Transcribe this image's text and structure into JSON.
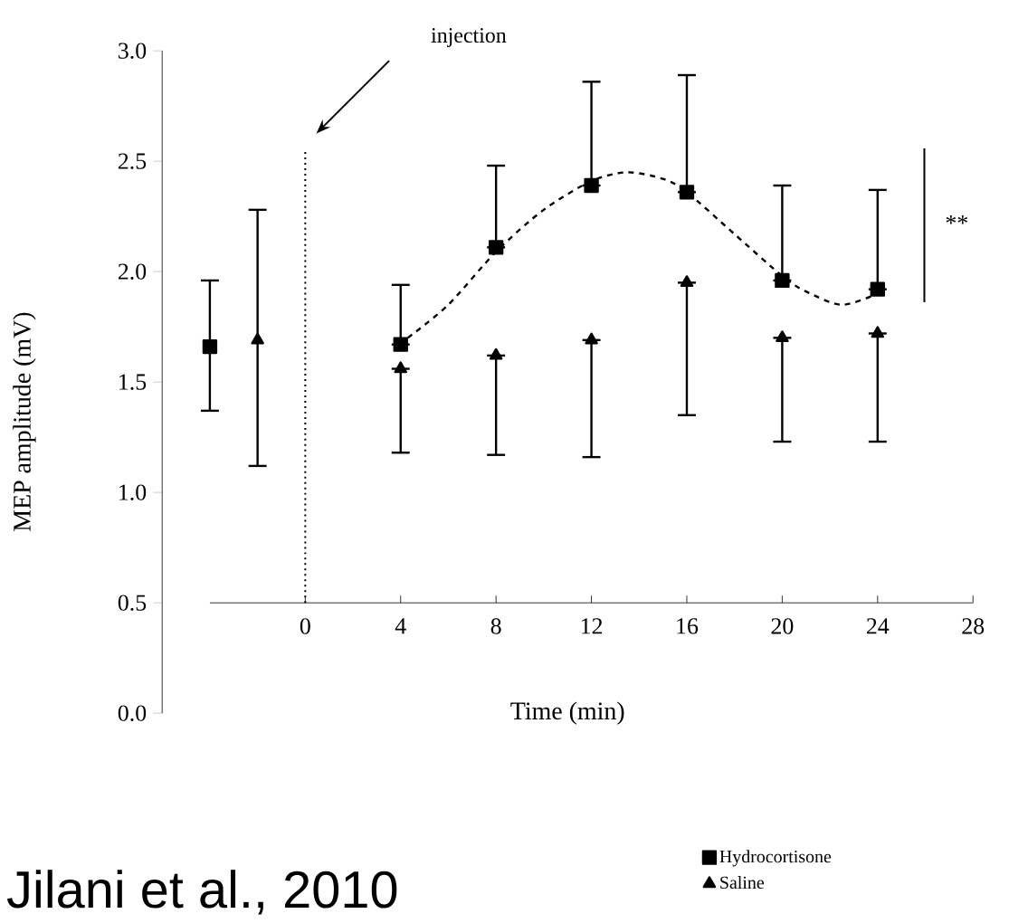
{
  "chart_data": {
    "type": "scatter",
    "xlabel": "Time (min)",
    "ylabel": "MEP amplitude (mV)",
    "xlim": [
      -6,
      28
    ],
    "ylim": [
      0,
      3
    ],
    "xticks": [
      0,
      4,
      8,
      12,
      16,
      20,
      24,
      28
    ],
    "yticks": [
      {
        "value": 0,
        "label": "0.0"
      },
      0.5,
      {
        "value": 1,
        "label": "1.0"
      },
      1.5,
      {
        "value": 2,
        "label": "2.0"
      },
      2.5,
      {
        "value": 3,
        "label": "3.0"
      }
    ],
    "legend": "bottom right",
    "series": [
      {
        "name": "Hydrocortisone",
        "marker": "square",
        "color": "#000000",
        "x": [
          -4,
          4,
          8,
          12,
          16,
          20,
          24
        ],
        "values": [
          1.66,
          1.67,
          2.11,
          2.39,
          2.36,
          1.96,
          1.92
        ],
        "errors": [
          [
            1.37,
            1.96
          ],
          [
            1.67,
            1.94
          ],
          [
            2.11,
            2.48
          ],
          [
            2.39,
            2.86
          ],
          [
            2.36,
            2.89
          ],
          [
            1.96,
            2.39
          ],
          [
            1.92,
            2.37
          ]
        ]
      },
      {
        "name": "Saline",
        "marker": "triangle",
        "color": "#000000",
        "x": [
          -2,
          4,
          8,
          12,
          16,
          20,
          24
        ],
        "values": [
          1.69,
          1.56,
          1.62,
          1.69,
          1.95,
          1.7,
          1.72
        ],
        "errors": [
          [
            1.12,
            2.28
          ],
          [
            1.18,
            1.56
          ],
          [
            1.17,
            1.62
          ],
          [
            1.16,
            1.69
          ],
          [
            1.35,
            1.95
          ],
          [
            1.23,
            1.7
          ],
          [
            1.23,
            1.72
          ]
        ]
      },
      {
        "type": "line",
        "line_style": "dashed",
        "marker": "none",
        "color": "#000000",
        "x": [
          4.3,
          6,
          8,
          10,
          12,
          13.5,
          15,
          16,
          18,
          20,
          21,
          22.5,
          24
        ],
        "values": [
          1.7,
          1.85,
          2.09,
          2.28,
          2.41,
          2.45,
          2.42,
          2.36,
          2.17,
          1.98,
          1.91,
          1.85,
          1.9
        ]
      }
    ],
    "ref_lines": [
      {
        "axis": "x",
        "value": 0,
        "line_style": "dotted"
      }
    ],
    "annotations": [
      "injection",
      "**",
      "Jilani et al., 2010"
    ]
  }
}
